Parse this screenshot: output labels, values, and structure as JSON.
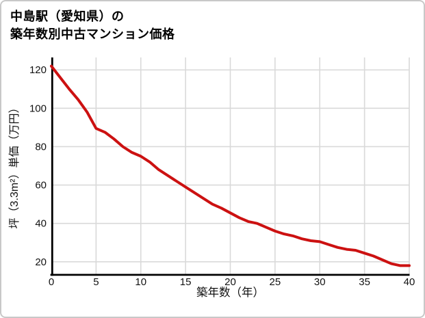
{
  "card": {
    "title_line1": "中島駅（愛知県）の",
    "title_line2": "築年数別中古マンション価格"
  },
  "chart_data": {
    "type": "line",
    "title": "中島駅（愛知県）の築年数別中古マンション価格",
    "xlabel": "築年数（年）",
    "ylabel": "坪（3.3m²）単価（万円）",
    "x": [
      0,
      1,
      2,
      3,
      4,
      5,
      6,
      7,
      8,
      9,
      10,
      11,
      12,
      13,
      14,
      15,
      16,
      17,
      18,
      19,
      20,
      21,
      22,
      23,
      24,
      25,
      26,
      27,
      28,
      29,
      30,
      31,
      32,
      33,
      34,
      35,
      36,
      37,
      38,
      39,
      40
    ],
    "values": [
      122,
      116,
      110,
      104.5,
      98,
      89.5,
      87.5,
      84,
      80,
      77,
      75,
      72,
      68,
      65,
      62,
      59,
      56,
      53,
      50,
      48,
      45.5,
      43,
      41,
      40,
      38,
      36,
      34.5,
      33.5,
      32,
      31,
      30.5,
      29,
      27.5,
      26.5,
      26,
      24.5,
      23,
      21,
      19,
      18,
      18
    ],
    "x_ticks": [
      0,
      5,
      10,
      15,
      20,
      25,
      30,
      35,
      40
    ],
    "y_ticks": [
      20,
      40,
      60,
      80,
      100,
      120
    ],
    "xlim": [
      0,
      40
    ],
    "ylim": [
      13.7,
      126.5
    ],
    "grid": true,
    "legend_position": "none"
  },
  "colors": {
    "line": "#cc1111",
    "grid": "#d9d9d9",
    "axis": "#000000",
    "text": "#111111",
    "border": "#c8c8c8",
    "background": "#ffffff"
  }
}
